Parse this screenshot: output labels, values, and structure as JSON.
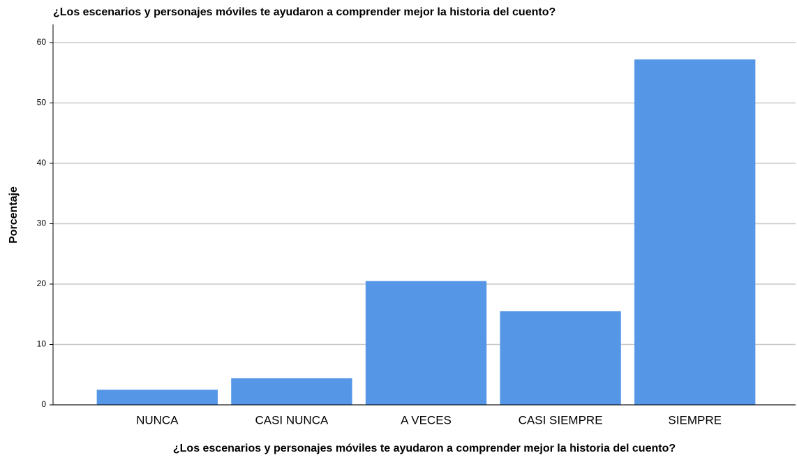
{
  "chart_data": {
    "type": "bar",
    "title": "¿Los escenarios y personajes móviles te ayudaron a comprender mejor la historia del cuento?",
    "x_label": "¿Los escenarios y personajes móviles te ayudaron a comprender mejor la historia del cuento?",
    "y_label": "Porcentaje",
    "categories": [
      "NUNCA",
      "CASI NUNCA",
      "A VECES",
      "CASI SIEMPRE",
      "SIEMPRE"
    ],
    "values": [
      2.5,
      4.4,
      20.5,
      15.5,
      57.2
    ],
    "color": "#5596e6",
    "ylim": [
      0,
      63
    ],
    "yticks": [
      0,
      10,
      20,
      30,
      40,
      50,
      60
    ],
    "grid": true
  }
}
